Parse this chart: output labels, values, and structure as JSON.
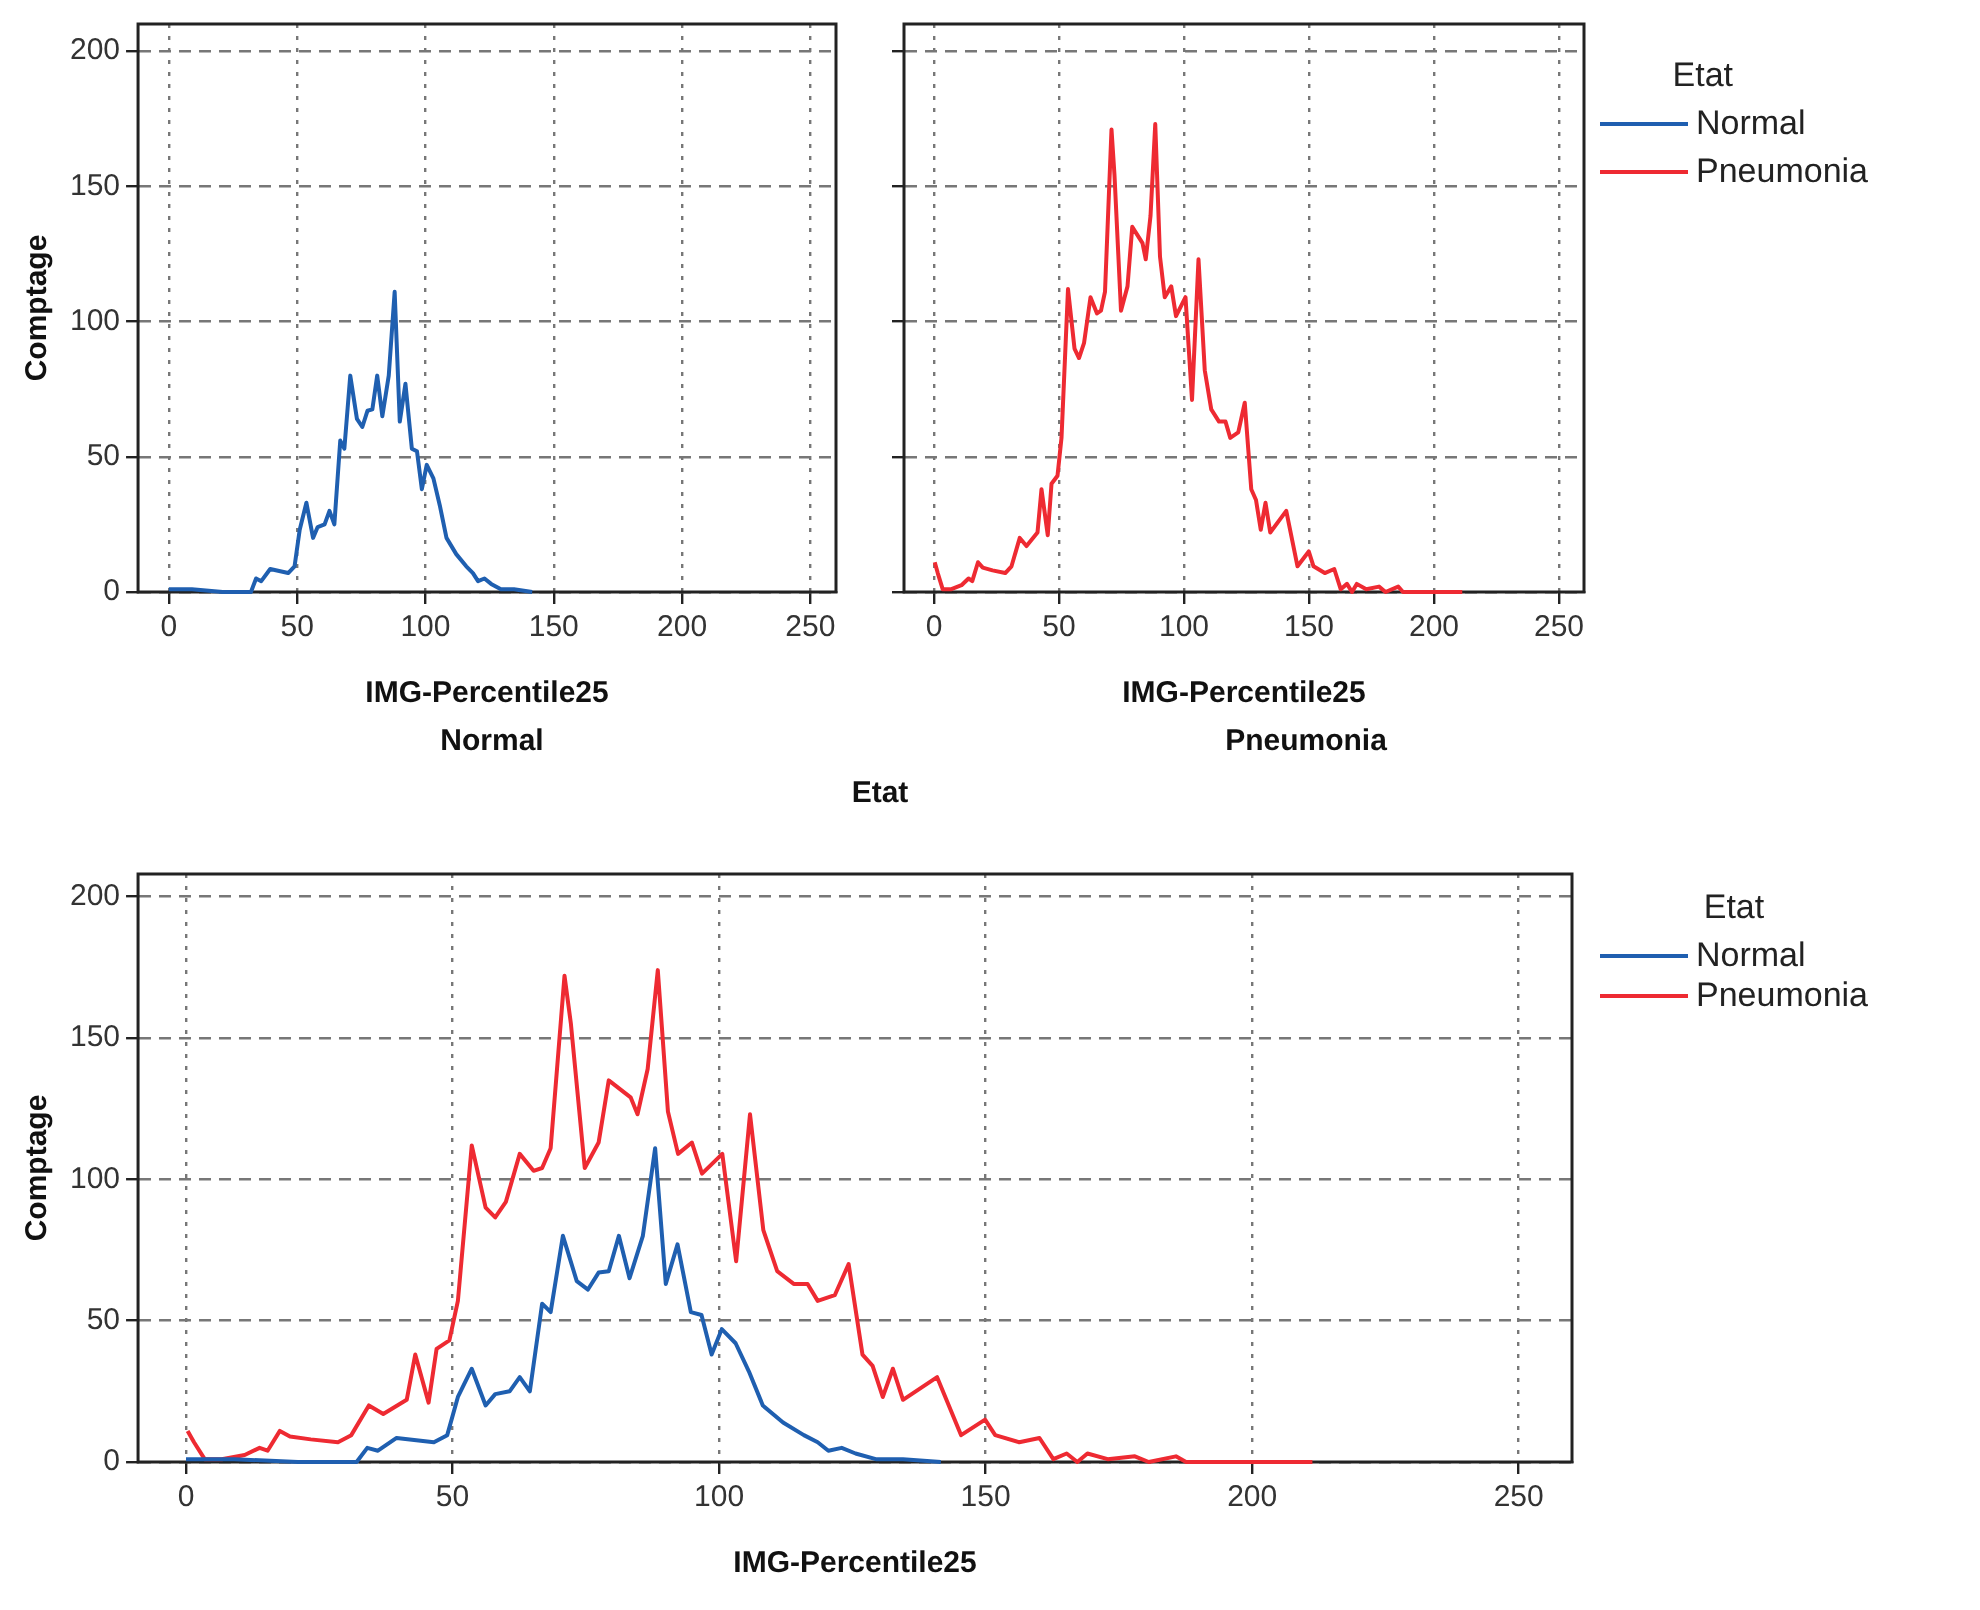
{
  "chart_data": [
    {
      "type": "line",
      "xlabel": "IMG-Percentile25",
      "ylabel": "Comptage",
      "legend_title": "Etat",
      "annotations": [
        "Normal",
        "Etat"
      ],
      "xlim": [
        -12,
        260
      ],
      "ylim": [
        0,
        210
      ],
      "xticks": [
        0,
        50,
        100,
        150,
        200,
        250
      ],
      "yticks": [
        0,
        50,
        100,
        150,
        200
      ],
      "grid": true,
      "legend": "right",
      "marker": "none",
      "line_style": "solid",
      "series": [
        {
          "name": "Normal",
          "color": "#1f5fb0",
          "x": [
            0,
            9,
            21,
            32,
            34,
            36,
            39.5,
            46.5,
            49,
            51,
            53.6,
            56.2,
            58,
            60.7,
            62.6,
            64.5,
            66.8,
            68.4,
            70.7,
            73.3,
            75.4,
            77.4,
            79.3,
            81.2,
            83.2,
            85.7,
            88,
            90,
            92.2,
            94.7,
            96.7,
            98.6,
            100.5,
            103.1,
            105.6,
            108.2,
            112,
            115.9,
            118.5,
            120.5,
            123,
            125.6,
            129.4,
            134.5,
            141.6
          ],
          "values": [
            1,
            1,
            0,
            0,
            5,
            4,
            8.5,
            7,
            9.5,
            23,
            33,
            20,
            24,
            25,
            30,
            25,
            56,
            53,
            80,
            64,
            61,
            67,
            67.5,
            80,
            65,
            80,
            111,
            63,
            77,
            53,
            52,
            38,
            47,
            42,
            32,
            20,
            14,
            9.5,
            7,
            4,
            5,
            3,
            1,
            1,
            0
          ]
        }
      ]
    },
    {
      "type": "line",
      "xlabel": "IMG-Percentile25",
      "annotations": [
        "Pneumonia"
      ],
      "xlim": [
        -12,
        260
      ],
      "ylim": [
        0,
        210
      ],
      "xticks": [
        0,
        50,
        100,
        150,
        200,
        250
      ],
      "yticks": [
        0,
        50,
        100,
        150,
        200
      ],
      "tick_labels": "x",
      "grid": true,
      "legend": "right",
      "marker": "none",
      "line_style": "solid",
      "series": [
        {
          "name": "Pneumonia",
          "color": "#ee2a32",
          "x": [
            0.3,
            1.5,
            3.5,
            6.7,
            11,
            13.8,
            15.3,
            17.6,
            19.5,
            23.4,
            28.5,
            31,
            34.3,
            37,
            41.4,
            43,
            45.5,
            47,
            49.4,
            51,
            53.6,
            56.2,
            58,
            60,
            62.6,
            65.2,
            66.8,
            68.4,
            71,
            72.2,
            74.8,
            77.4,
            79.3,
            83.4,
            84.7,
            86.6,
            88.5,
            90.4,
            92.3,
            94.9,
            96.8,
            100.6,
            103.2,
            105.8,
            108.3,
            110.9,
            114,
            116.6,
            118.5,
            121.7,
            124.3,
            126.9,
            128.8,
            130.7,
            132.6,
            134.5,
            140.9,
            145.4,
            149.9,
            151.8,
            156.3,
            160.1,
            162.7,
            165.2,
            167.2,
            169.1,
            172.9,
            178,
            180.6,
            185.7,
            187.6,
            211.3
          ],
          "values": [
            11,
            7,
            1,
            1,
            2.5,
            5,
            4,
            11,
            9,
            8,
            7,
            9.5,
            20,
            17,
            22,
            38,
            21,
            40,
            43,
            57,
            112,
            90,
            86.5,
            92,
            109,
            103,
            104,
            111,
            171,
            154,
            104,
            113,
            135,
            129,
            123,
            139,
            173,
            124,
            109,
            113,
            102,
            109,
            71,
            123,
            82,
            67.5,
            63,
            63,
            57,
            59,
            70,
            38,
            34,
            23,
            33,
            22,
            30,
            9.5,
            15,
            9.5,
            7,
            8.5,
            1,
            3,
            0,
            3,
            1,
            2,
            0,
            2,
            0,
            0
          ]
        }
      ]
    },
    {
      "type": "line",
      "xlabel": "IMG-Percentile25",
      "ylabel": "Comptage",
      "legend_title": "Etat",
      "xlim": [
        -9,
        260
      ],
      "ylim": [
        0,
        208
      ],
      "xticks": [
        0,
        50,
        100,
        150,
        200,
        250
      ],
      "yticks": [
        0,
        50,
        100,
        150,
        200
      ],
      "grid": true,
      "legend": "right",
      "marker": "none",
      "line_style": "solid",
      "series": [
        {
          "name": "Normal",
          "color": "#1f5fb0",
          "x": [
            0,
            9,
            21,
            32,
            34,
            36,
            39.5,
            46.5,
            49,
            51,
            53.6,
            56.2,
            58,
            60.7,
            62.6,
            64.5,
            66.8,
            68.4,
            70.7,
            73.3,
            75.4,
            77.4,
            79.3,
            81.2,
            83.2,
            85.7,
            88,
            90,
            92.2,
            94.7,
            96.7,
            98.6,
            100.5,
            103.1,
            105.6,
            108.2,
            112,
            115.9,
            118.5,
            120.5,
            123,
            125.6,
            129.4,
            134.5,
            141.6
          ],
          "values": [
            1,
            1,
            0,
            0,
            5,
            4,
            8.5,
            7,
            9.5,
            23,
            33,
            20,
            24,
            25,
            30,
            25,
            56,
            53,
            80,
            64,
            61,
            67,
            67.5,
            80,
            65,
            80,
            111,
            63,
            77,
            53,
            52,
            38,
            47,
            42,
            32,
            20,
            14,
            9.5,
            7,
            4,
            5,
            3,
            1,
            1,
            0
          ]
        },
        {
          "name": "Pneumonia",
          "color": "#ee2a32",
          "x": [
            0.3,
            1.5,
            3.5,
            6.7,
            11,
            13.8,
            15.3,
            17.6,
            19.5,
            23.4,
            28.5,
            31,
            34.3,
            37,
            41.4,
            43,
            45.5,
            47,
            49.4,
            51,
            53.6,
            56.2,
            58,
            60,
            62.6,
            65.2,
            66.8,
            68.4,
            71,
            72.2,
            74.8,
            77.4,
            79.3,
            83.4,
            84.7,
            86.6,
            88.5,
            90.4,
            92.3,
            94.9,
            96.8,
            100.6,
            103.2,
            105.8,
            108.3,
            110.9,
            114,
            116.6,
            118.5,
            121.7,
            124.3,
            126.9,
            128.8,
            130.7,
            132.6,
            134.5,
            140.9,
            145.4,
            149.9,
            151.8,
            156.3,
            160.1,
            162.7,
            165.2,
            167.2,
            169.1,
            172.9,
            178,
            180.6,
            185.7,
            187.6,
            211.3
          ],
          "values": [
            11,
            7,
            1,
            1,
            2.5,
            5,
            4,
            11,
            9,
            8,
            7,
            9.5,
            20,
            17,
            22,
            38,
            21,
            40,
            43,
            57,
            112,
            90,
            86.5,
            92,
            109,
            103,
            104,
            111,
            172,
            155,
            104,
            113,
            135,
            129,
            123,
            139,
            174,
            124,
            109,
            113,
            102,
            109,
            71,
            123,
            82,
            67.5,
            63,
            63,
            57,
            59,
            70,
            38,
            34,
            23,
            33,
            22,
            30,
            9.5,
            15,
            9.5,
            7,
            8.5,
            1,
            3,
            0,
            3,
            1,
            2,
            0,
            2,
            0,
            0
          ]
        }
      ]
    }
  ]
}
